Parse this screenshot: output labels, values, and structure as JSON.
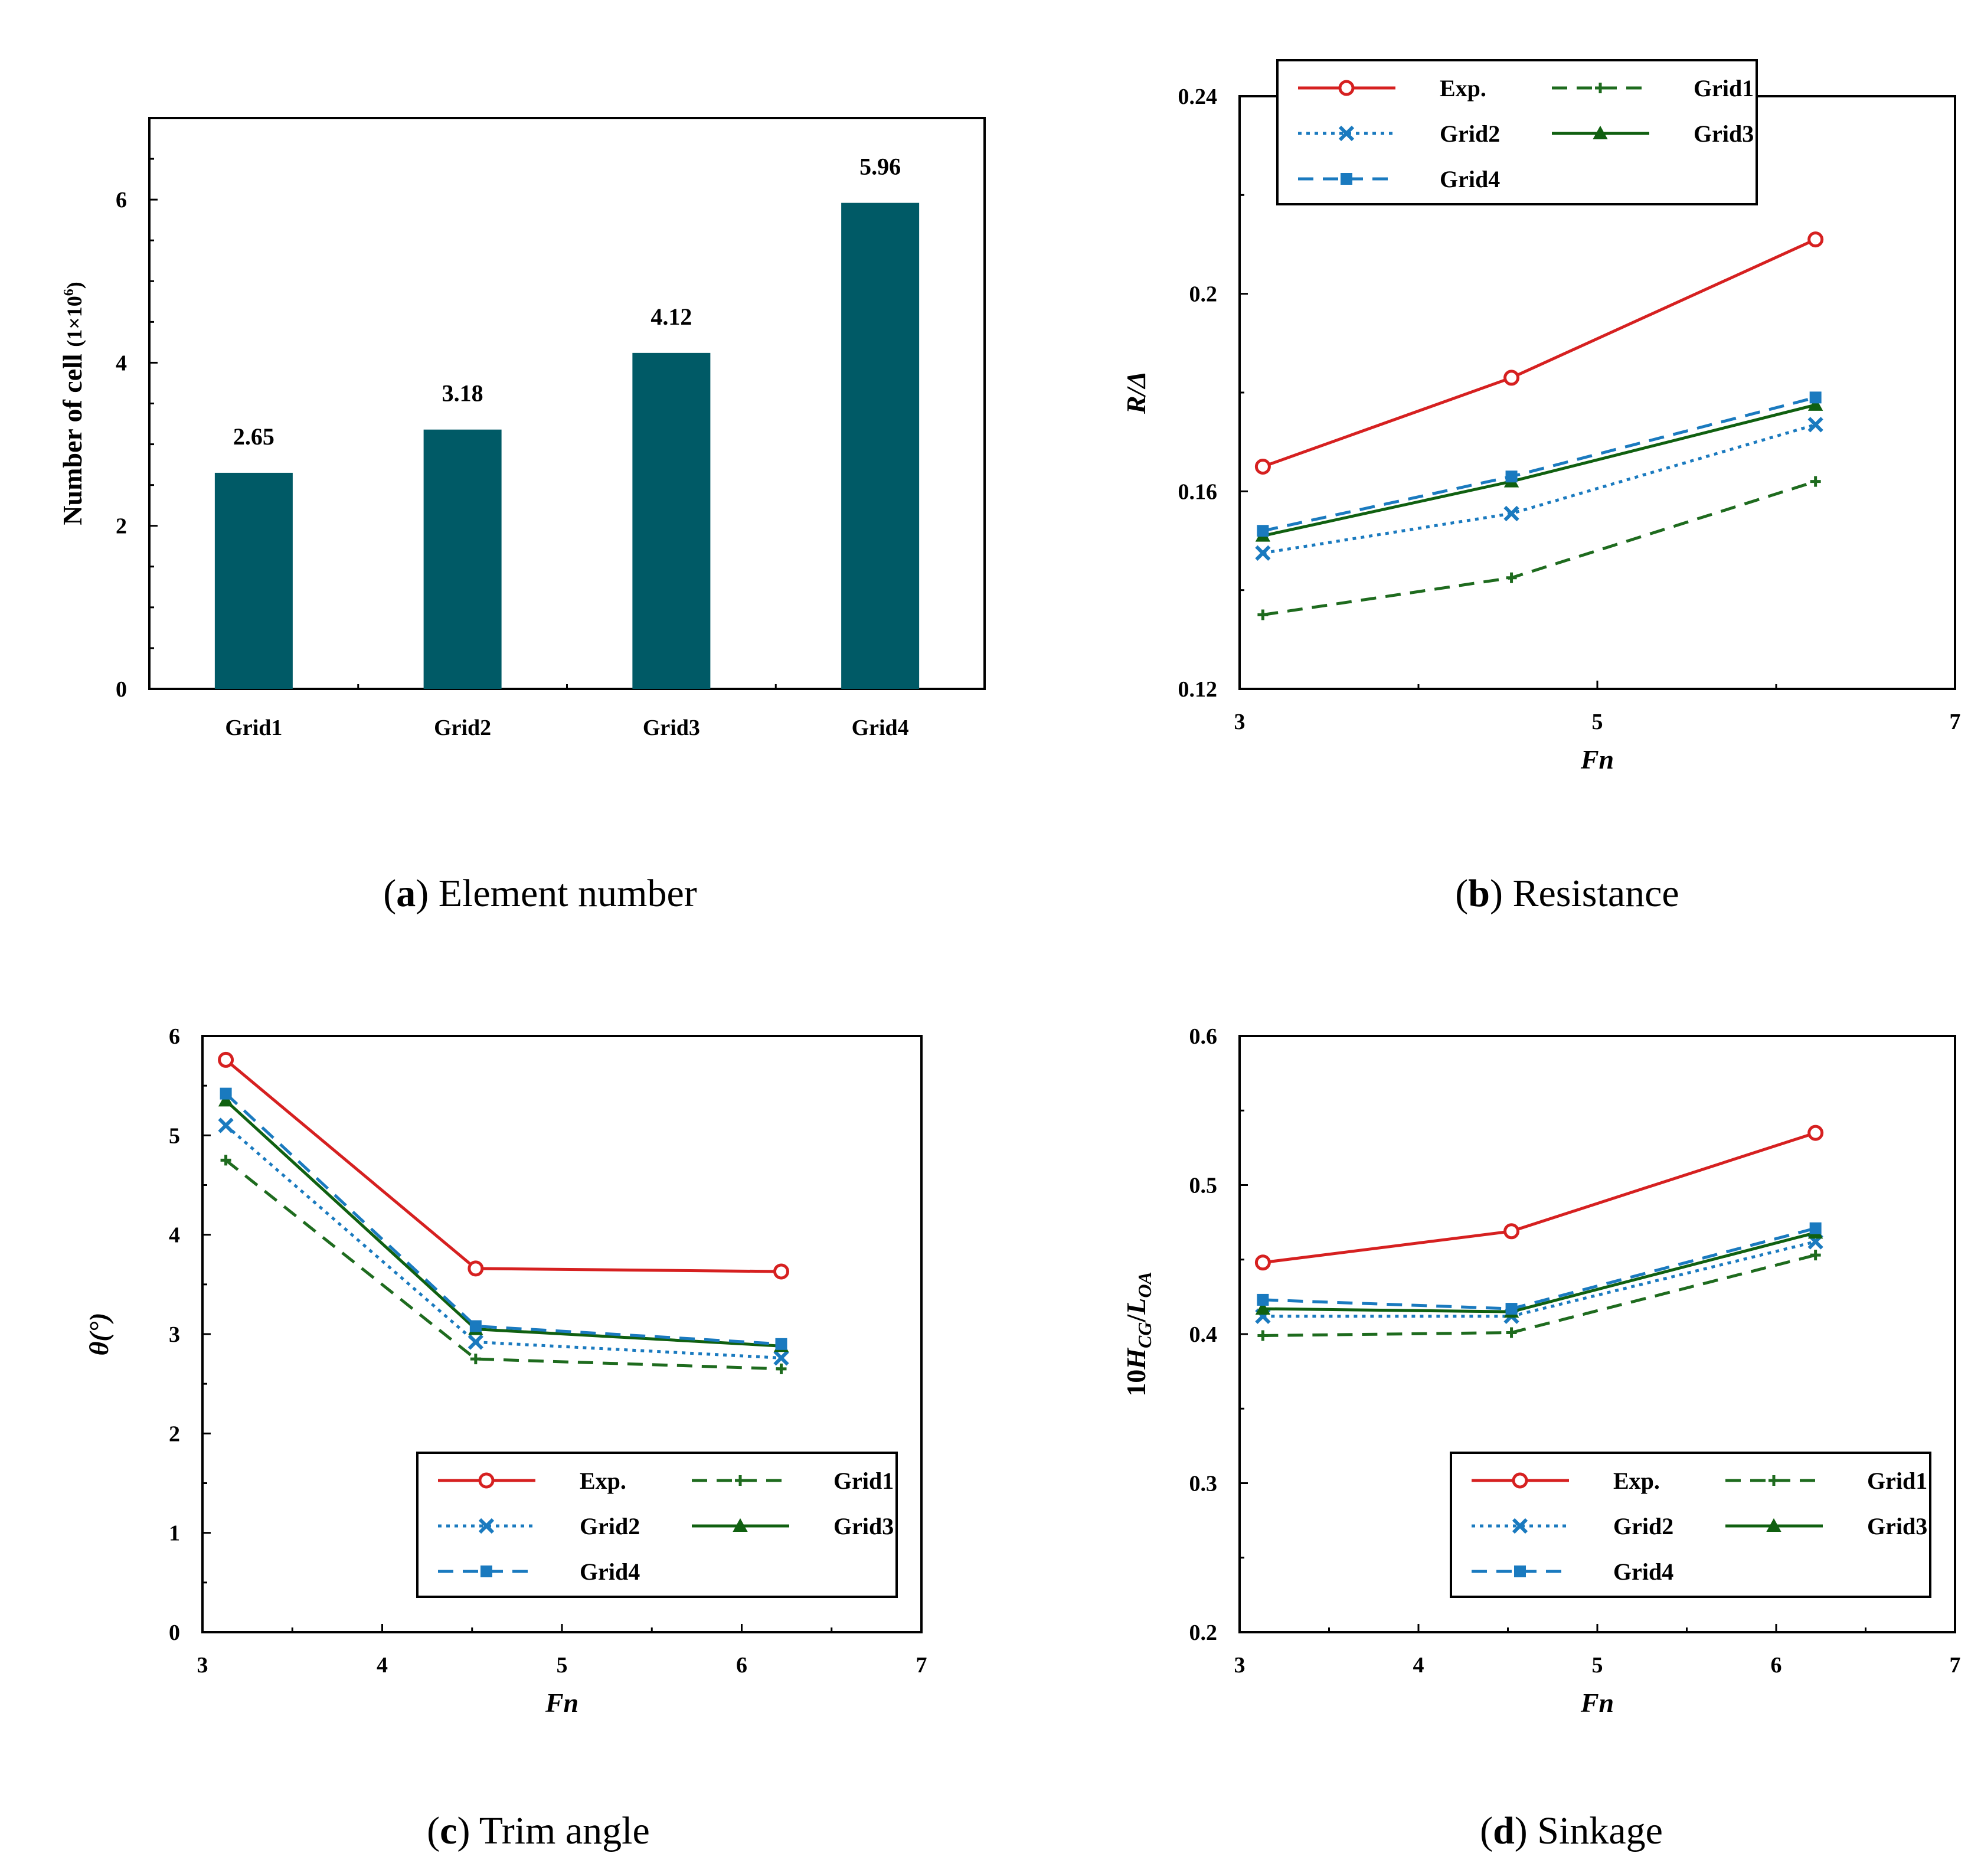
{
  "chart_data": [
    {
      "id": "a",
      "type": "bar",
      "caption_letter": "a",
      "caption_text": "Element number",
      "categories": [
        "Grid1",
        "Grid2",
        "Grid3",
        "Grid4"
      ],
      "values": [
        2.65,
        3.18,
        4.12,
        5.96
      ],
      "data_labels": [
        "2.65",
        "3.18",
        "4.12",
        "5.96"
      ],
      "ylabel": "Number of cell (1×10⁶)",
      "ylim": [
        0,
        7
      ],
      "yticks": [
        0,
        2,
        4,
        6
      ],
      "color": "#005a66",
      "grid": false
    },
    {
      "id": "b",
      "type": "line",
      "caption_letter": "b",
      "caption_text": "Resistance",
      "xlabel": "Fn",
      "ylabel": "R/Δ",
      "xlim": [
        3,
        7
      ],
      "ylim": [
        0.12,
        0.24
      ],
      "xticks": [
        3,
        5,
        7
      ],
      "yticks": [
        0.12,
        0.16,
        0.2,
        0.24
      ],
      "ytick_labels": [
        "0.12",
        "0.16",
        "0.2",
        "0.24"
      ],
      "legend_position": "top",
      "x": [
        3.13,
        4.52,
        6.22
      ],
      "series": [
        {
          "name": "Exp.",
          "values": [
            0.165,
            0.183,
            0.211
          ],
          "color": "#d62020",
          "style": "solid",
          "marker": "circle"
        },
        {
          "name": "Grid1",
          "values": [
            0.135,
            0.1425,
            0.162
          ],
          "color": "#1e6b1e",
          "style": "dashed",
          "marker": "plus"
        },
        {
          "name": "Grid2",
          "values": [
            0.1475,
            0.1555,
            0.1735
          ],
          "color": "#1a7abf",
          "style": "dotted",
          "marker": "x"
        },
        {
          "name": "Grid3",
          "values": [
            0.151,
            0.162,
            0.1775
          ],
          "color": "#106010",
          "style": "solid",
          "marker": "triangle"
        },
        {
          "name": "Grid4",
          "values": [
            0.152,
            0.163,
            0.179
          ],
          "color": "#1a7abf",
          "style": "dashed",
          "marker": "square"
        }
      ]
    },
    {
      "id": "c",
      "type": "line",
      "caption_letter": "c",
      "caption_text": "Trim angle",
      "xlabel": "Fn",
      "ylabel": "θ(°)",
      "xlim": [
        3,
        7
      ],
      "ylim": [
        0,
        6
      ],
      "xticks": [
        3,
        4,
        5,
        6,
        7
      ],
      "yticks": [
        0,
        1,
        2,
        3,
        4,
        5,
        6
      ],
      "ytick_labels": [
        "0",
        "1",
        "2",
        "3",
        "4",
        "5",
        "6"
      ],
      "legend_position": "bottom-right",
      "x": [
        3.13,
        4.52,
        6.22
      ],
      "series": [
        {
          "name": "Exp.",
          "values": [
            5.76,
            3.66,
            3.63
          ],
          "color": "#d62020",
          "style": "solid",
          "marker": "circle"
        },
        {
          "name": "Grid1",
          "values": [
            4.75,
            2.75,
            2.65
          ],
          "color": "#1e6b1e",
          "style": "dashed",
          "marker": "plus"
        },
        {
          "name": "Grid2",
          "values": [
            5.1,
            2.92,
            2.76
          ],
          "color": "#1a7abf",
          "style": "dotted",
          "marker": "x"
        },
        {
          "name": "Grid3",
          "values": [
            5.35,
            3.05,
            2.88
          ],
          "color": "#106010",
          "style": "solid",
          "marker": "triangle"
        },
        {
          "name": "Grid4",
          "values": [
            5.42,
            3.08,
            2.9
          ],
          "color": "#1a7abf",
          "style": "dashed",
          "marker": "square"
        }
      ]
    },
    {
      "id": "d",
      "type": "line",
      "caption_letter": "d",
      "caption_text": "Sinkage",
      "xlabel": "Fn",
      "ylabel": "10H_CG/L_OA",
      "xlim": [
        3,
        7
      ],
      "ylim": [
        0.2,
        0.6
      ],
      "xticks": [
        3,
        4,
        5,
        6,
        7
      ],
      "yticks": [
        0.2,
        0.3,
        0.4,
        0.5,
        0.6
      ],
      "ytick_labels": [
        "0.2",
        "0.3",
        "0.4",
        "0.5",
        "0.6"
      ],
      "legend_position": "bottom-right",
      "x": [
        3.13,
        4.52,
        6.22
      ],
      "series": [
        {
          "name": "Exp.",
          "values": [
            0.448,
            0.469,
            0.535
          ],
          "color": "#d62020",
          "style": "solid",
          "marker": "circle"
        },
        {
          "name": "Grid1",
          "values": [
            0.399,
            0.401,
            0.453
          ],
          "color": "#1e6b1e",
          "style": "dashed",
          "marker": "plus"
        },
        {
          "name": "Grid2",
          "values": [
            0.412,
            0.412,
            0.462
          ],
          "color": "#1a7abf",
          "style": "dotted",
          "marker": "x"
        },
        {
          "name": "Grid3",
          "values": [
            0.417,
            0.415,
            0.468
          ],
          "color": "#106010",
          "style": "solid",
          "marker": "triangle"
        },
        {
          "name": "Grid4",
          "values": [
            0.423,
            0.417,
            0.471
          ],
          "color": "#1a7abf",
          "style": "dashed",
          "marker": "square"
        }
      ]
    }
  ]
}
